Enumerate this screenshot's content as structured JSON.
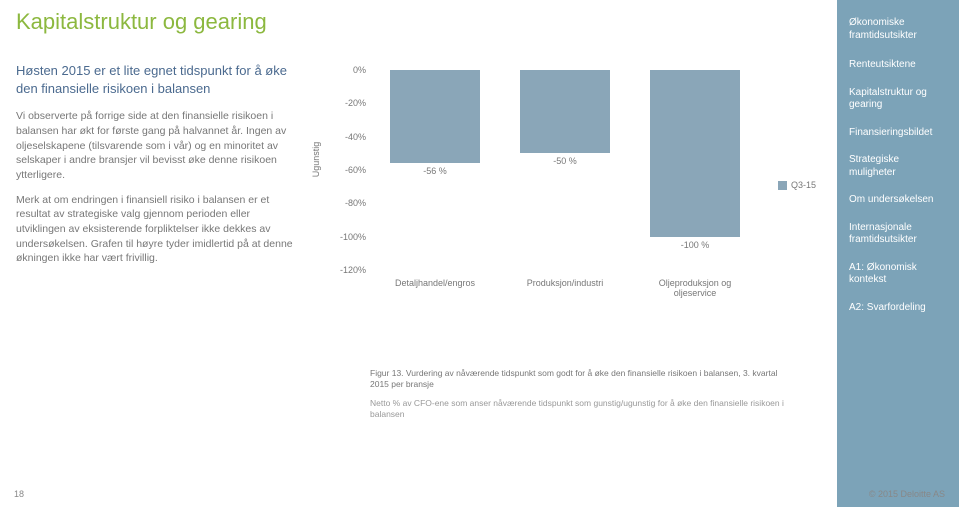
{
  "title": "Kapitalstruktur og gearing",
  "subtitle": "Høsten 2015 er et lite egnet tidspunkt for å øke den finansielle risikoen i balansen",
  "para1": "Vi observerte på forrige side at den finansielle risikoen i balansen har økt for første gang på halvannet år. Ingen av oljeselskapene (tilsvarende som i vår) og en minoritet av selskaper i andre bransjer vil bevisst øke denne risikoen ytterligere.",
  "para2": "Merk at om endringen i finansiell risiko i balansen er et resultat av strategiske valg gjennom perioden eller utviklingen av eksisterende forpliktelser ikke dekkes av undersøkelsen. Grafen til høyre tyder imidlertid på at denne økningen ikke har vært frivillig.",
  "chart": {
    "type": "bar",
    "y_axis_label": "Ugunstig",
    "ticks": [
      "0%",
      "-20%",
      "-40%",
      "-60%",
      "-80%",
      "-100%",
      "-120%"
    ],
    "ymin": -120,
    "ymax": 0,
    "categories": [
      "Detaljhandel/engros",
      "Produksjon/industri",
      "Oljeproduksjon og oljeservice"
    ],
    "values": [
      -56,
      -50,
      -100
    ],
    "value_labels": [
      "-56 %",
      "-50 %",
      "-100 %"
    ],
    "bar_color": "#8aa6b8",
    "legend_label": "Q3-15",
    "background": "#ffffff",
    "tick_color": "#777777",
    "label_fontsize": 9
  },
  "caption": "Figur 13. Vurdering av nåværende tidspunkt som godt for å øke den finansielle risikoen i balansen, 3. kvartal 2015 per bransje",
  "caption2": "Netto % av CFO-ene som anser nåværende tidspunkt som gunstig/ugunstig for å øke den finansielle risikoen i balansen",
  "sidebar": {
    "items": [
      "Økonomiske framtidsutsikter",
      "Renteutsiktene",
      "Kapitalstruktur og gearing",
      "Finansieringsbildet",
      "Strategiske muligheter",
      "Om undersøkelsen",
      "Internasjonale framtidsutsikter",
      "A1: Økonomisk kontekst",
      "A2: Svarfordeling"
    ],
    "active_index": 2
  },
  "footer": {
    "page": "18",
    "copyright": "© 2015 Deloitte AS"
  }
}
